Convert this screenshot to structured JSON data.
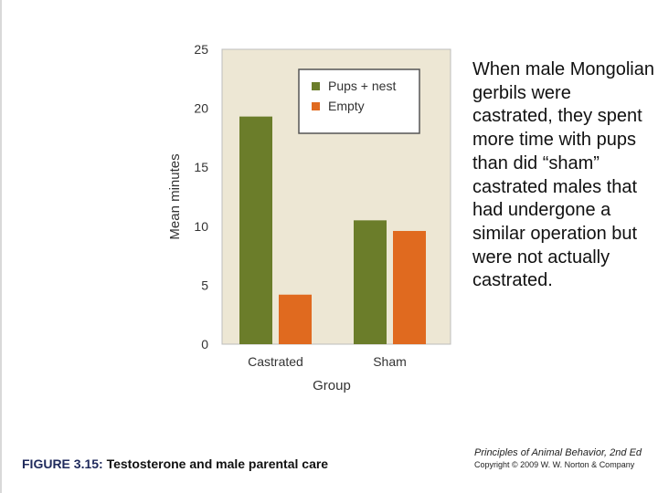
{
  "chart_data": {
    "type": "bar",
    "categories": [
      "Castrated",
      "Sham"
    ],
    "series": [
      {
        "name": "Pups + nest",
        "values": [
          19.3,
          10.5
        ],
        "color": "#6b7d2a"
      },
      {
        "name": "Empty",
        "values": [
          4.2,
          9.6
        ],
        "color": "#e06a1f"
      }
    ],
    "xlabel": "Group",
    "ylabel": "Mean minutes",
    "ylim": [
      0,
      25
    ],
    "yticks": [
      0,
      5,
      10,
      15,
      20,
      25
    ],
    "legend_position": "top-right",
    "grid": false,
    "plot_background": "#ede7d4"
  },
  "description": "When male Mongolian gerbils were castrated, they spent more time with pups than did “sham” castrated males that had undergone a similar operation but were not actually castrated.",
  "caption": {
    "figure_label": "FIGURE 3.15:",
    "title": "Testosterone and male parental care"
  },
  "credit": {
    "book": "Principles of Animal Behavior, 2nd Ed",
    "copyright": "Copyright © 2009 W. W. Norton & Company"
  }
}
